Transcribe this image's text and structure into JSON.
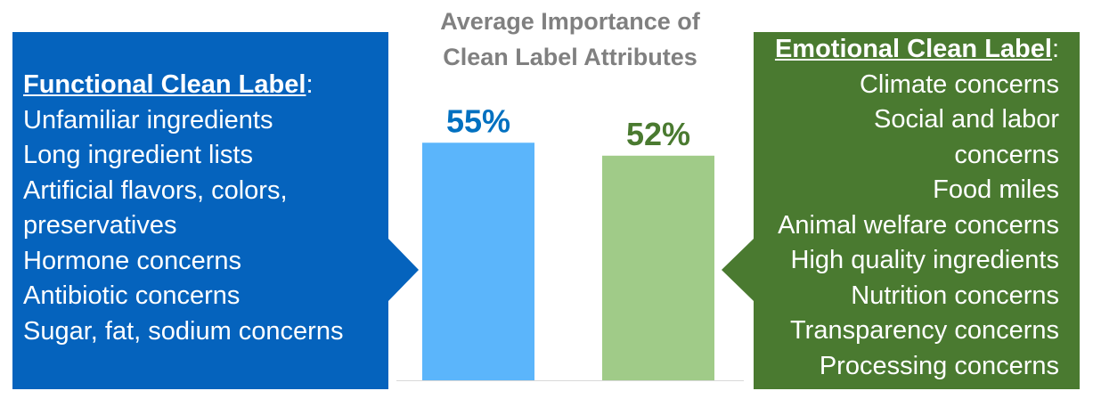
{
  "colors": {
    "functional_panel": "#0563bd",
    "emotional_panel": "#4a7a30",
    "functional_bar": "#5bb5fb",
    "emotional_bar": "#a0cb88",
    "functional_value_text": "#0070c0",
    "emotional_value_text": "#4a7a30",
    "title_text": "#808080"
  },
  "functional_panel": {
    "title": "Functional Clean Label",
    "colon": ":",
    "items": [
      "Unfamiliar ingredients",
      "Long ingredient lists",
      "Artificial flavors, colors,",
      "preservatives",
      "Hormone concerns",
      "Antibiotic concerns",
      "Sugar, fat, sodium concerns"
    ]
  },
  "emotional_panel": {
    "title": "Emotional Clean Label",
    "colon": ":",
    "items": [
      "Climate concerns",
      "Social and labor",
      "concerns",
      "Food miles",
      "Animal welfare concerns",
      "High quality ingredients",
      "Nutrition concerns",
      "Transparency concerns",
      "Processing concerns"
    ]
  },
  "chart_data": {
    "type": "bar",
    "title_lines": [
      "Average Importance of",
      "Clean Label Attributes"
    ],
    "categories": [
      "Functional Clean Label",
      "Emotional Clean Label"
    ],
    "values": [
      55,
      52
    ],
    "value_labels": [
      "55%",
      "52%"
    ],
    "ylim": [
      0,
      100
    ],
    "grid": false,
    "legend": "none"
  }
}
